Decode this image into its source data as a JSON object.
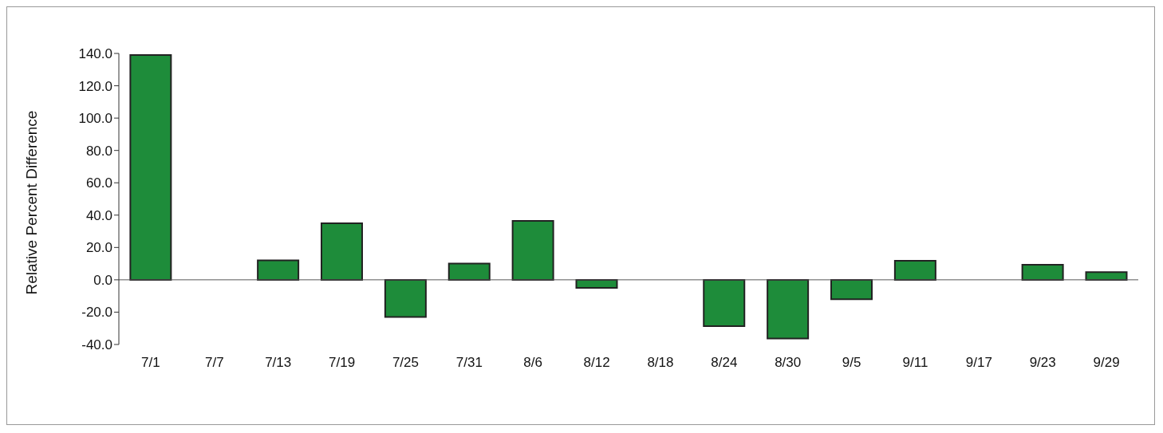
{
  "chart_data": {
    "type": "bar",
    "ylabel": "Relative Percent Difference",
    "categories": [
      "7/1",
      "7/7",
      "7/13",
      "7/19",
      "7/25",
      "7/31",
      "8/6",
      "8/12",
      "8/18",
      "8/24",
      "8/30",
      "9/5",
      "9/11",
      "9/17",
      "9/23",
      "9/29"
    ],
    "values": [
      139,
      null,
      12,
      35,
      -23,
      10,
      36.5,
      -5,
      null,
      -28.7,
      -36.3,
      -12,
      11.8,
      null,
      9.3,
      4.7
    ],
    "color": "#1e8c3a",
    "ylim": [
      -40,
      140
    ],
    "yticks": [
      {
        "value": -40,
        "label": "-40.0"
      },
      {
        "value": -20,
        "label": "-20.0"
      },
      {
        "value": 0,
        "label": "0.0"
      },
      {
        "value": 20,
        "label": "20.0"
      },
      {
        "value": 40,
        "label": "40.0"
      },
      {
        "value": 60,
        "label": "60.0"
      },
      {
        "value": 80,
        "label": "80.0"
      },
      {
        "value": 100,
        "label": "100.0"
      },
      {
        "value": 120,
        "label": "120.0"
      },
      {
        "value": 140,
        "label": "140.0"
      }
    ],
    "legend": false
  }
}
